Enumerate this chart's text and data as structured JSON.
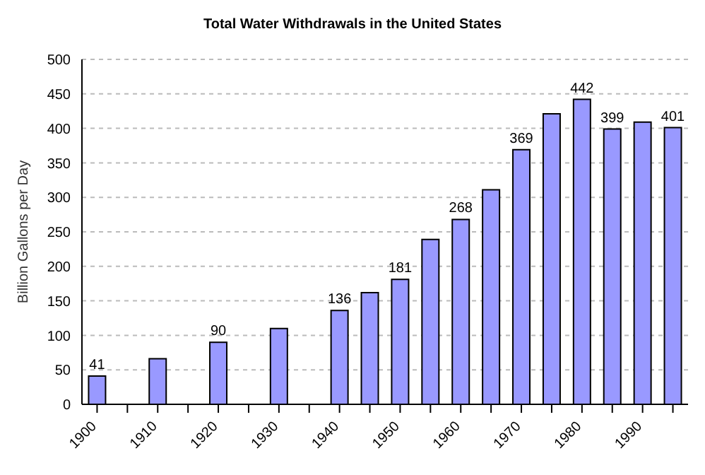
{
  "chart_data": {
    "type": "bar",
    "title": "Total Water Withdrawals in the United States",
    "ylabel": "Billion Gallons per Day",
    "categories": [
      "1900",
      null,
      "1910",
      null,
      "1920",
      null,
      "1930",
      null,
      "1940",
      null,
      "1950",
      null,
      "1960",
      null,
      "1970",
      null,
      "1980",
      null,
      "1990",
      null
    ],
    "values": [
      41,
      null,
      66,
      null,
      90,
      null,
      110,
      null,
      136,
      162,
      181,
      239,
      268,
      311,
      369,
      421,
      442,
      399,
      409,
      401
    ],
    "value_labels": [
      "41",
      null,
      null,
      null,
      "90",
      null,
      null,
      null,
      "136",
      null,
      "181",
      null,
      "268",
      null,
      "369",
      null,
      "442",
      "399",
      null,
      "401"
    ],
    "color": "#9999ff",
    "ylim": [
      0,
      500
    ],
    "yticks": [
      0,
      50,
      100,
      150,
      200,
      250,
      300,
      350,
      400,
      450,
      500
    ],
    "grid": "y"
  }
}
